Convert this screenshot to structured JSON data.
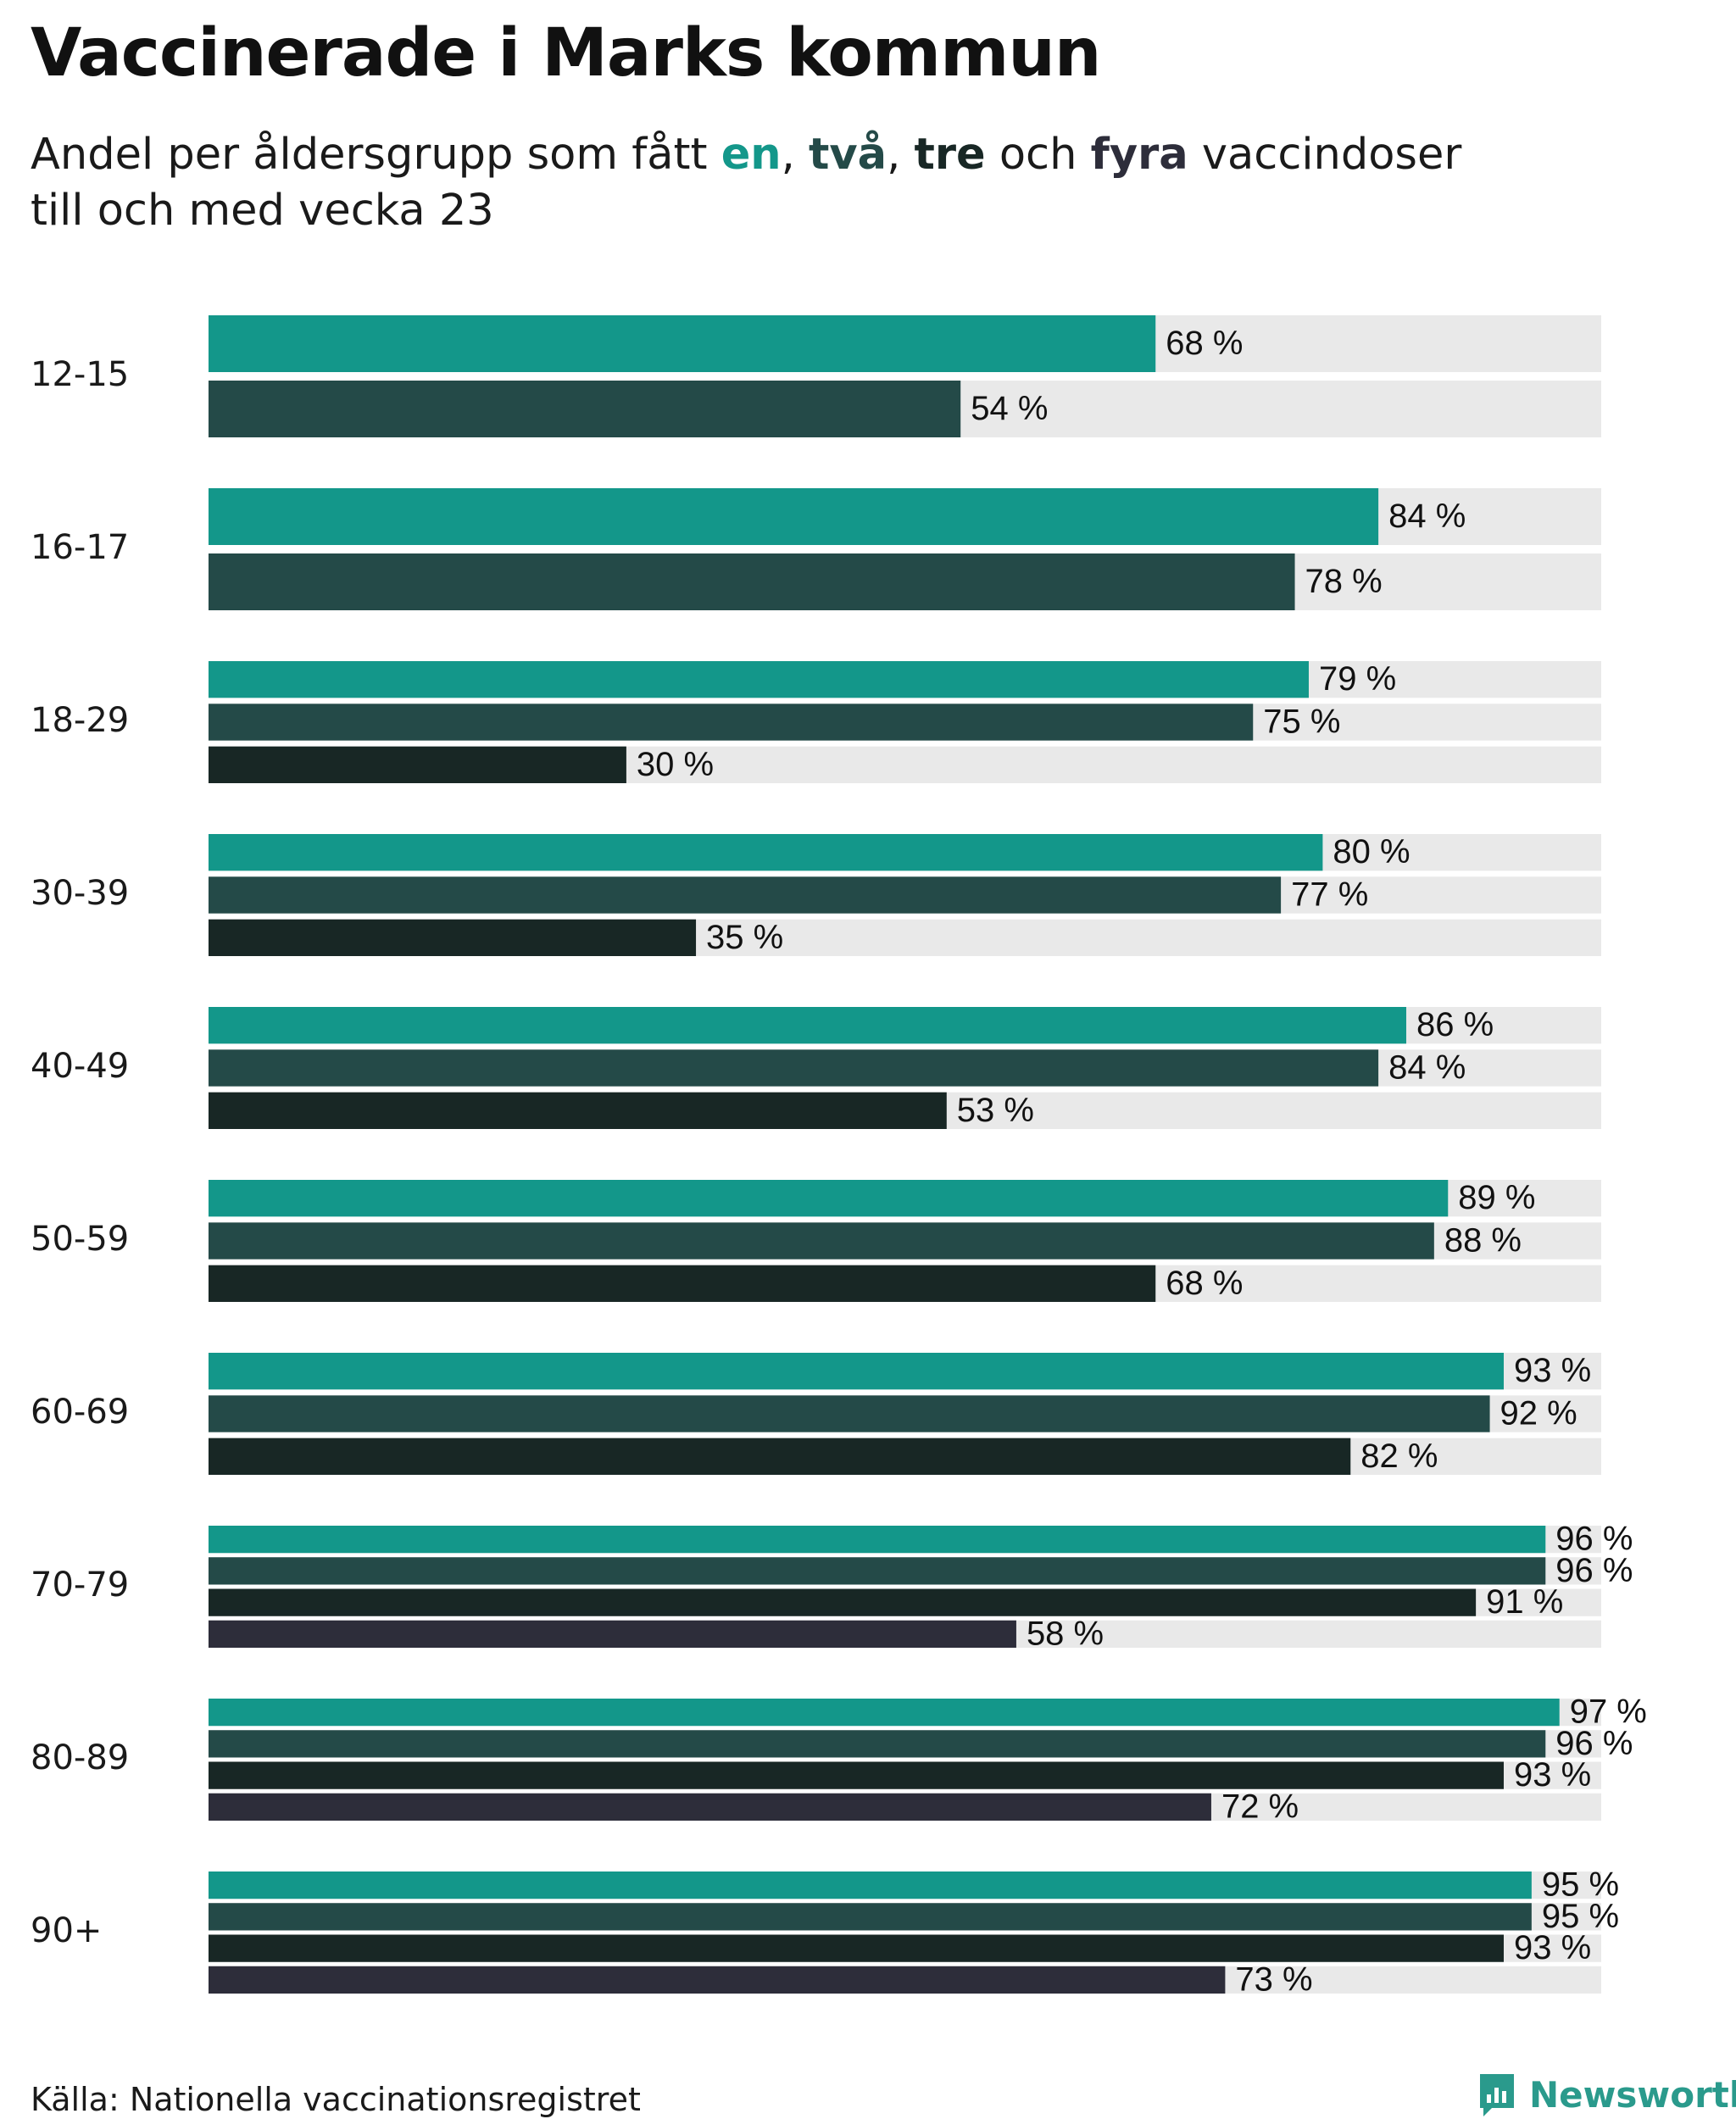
{
  "title": "Vaccinerade i Marks kommun",
  "subtitle": {
    "pre": "Andel per åldersgrupp som fått ",
    "w1": "en",
    "s1": ", ",
    "w2": "två",
    "s2": ", ",
    "w3": "tre",
    "s3": " och ",
    "w4": "fyra",
    "post": " vaccindoser",
    "line2": "till och med vecka 23"
  },
  "colors": {
    "dose1": "#13978a",
    "dose2": "#244a48",
    "dose3": "#182725",
    "dose4": "#2d2d3a",
    "track": "#e9e9e9"
  },
  "chart_data": {
    "type": "bar",
    "orientation": "horizontal",
    "unit": "%",
    "xlim": [
      0,
      100
    ],
    "grid": false,
    "series": [
      {
        "name": "en",
        "values": [
          68,
          84,
          79,
          80,
          86,
          89,
          93,
          96,
          97,
          95
        ]
      },
      {
        "name": "två",
        "values": [
          54,
          78,
          75,
          77,
          84,
          88,
          92,
          96,
          96,
          95
        ]
      },
      {
        "name": "tre",
        "values": [
          null,
          null,
          30,
          35,
          53,
          68,
          82,
          91,
          93,
          93
        ]
      },
      {
        "name": "fyra",
        "values": [
          null,
          null,
          null,
          null,
          null,
          null,
          null,
          58,
          72,
          73
        ]
      }
    ],
    "categories": [
      "12-15",
      "16-17",
      "18-29",
      "30-39",
      "40-49",
      "50-59",
      "60-69",
      "70-79",
      "80-89",
      "90+"
    ]
  },
  "source": "Källa: Nationella vaccinationsregistret",
  "brand": {
    "name": "Newsworthy",
    "icon": "newsworthy-logo-icon"
  }
}
